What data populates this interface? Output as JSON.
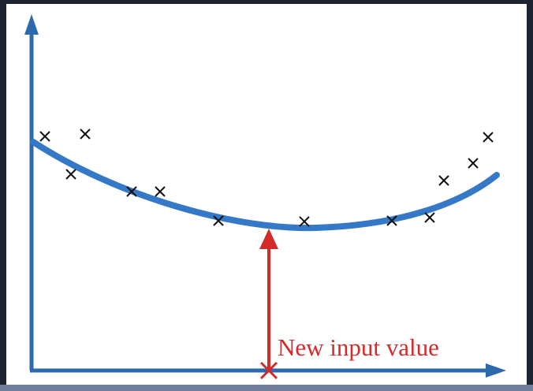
{
  "annotation": "New input value"
}
